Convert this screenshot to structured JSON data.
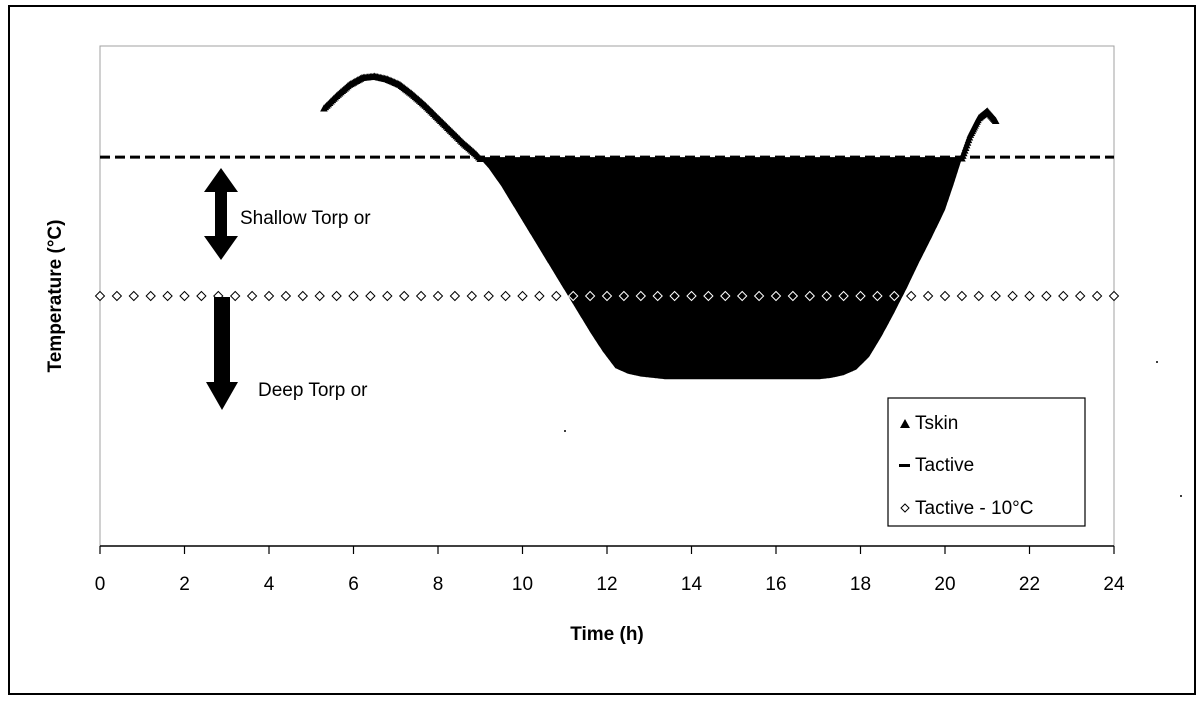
{
  "chart_data": {
    "type": "scatter",
    "title": "",
    "xlabel": "Time (h)",
    "ylabel": "Temperature (°C)",
    "xlim": [
      0,
      24
    ],
    "ylim": [
      0,
      36
    ],
    "x_ticks": [
      0,
      2,
      4,
      6,
      8,
      10,
      12,
      14,
      16,
      18,
      20,
      22,
      24
    ],
    "x_tick_labels": [
      "0",
      "2",
      "4",
      "6",
      "8",
      "10",
      "12",
      "14",
      "16",
      "18",
      "20",
      "22",
      "24"
    ],
    "y_tick_labels_shown": false,
    "grid": false,
    "legend_position": "bottom-right",
    "annotations": [
      "Shallow Torp or",
      "Deep Torp or"
    ],
    "series": [
      {
        "name": "Tskin",
        "marker": "triangle",
        "color": "#000000",
        "x": [
          5.3,
          5.6,
          5.9,
          6.2,
          6.5,
          6.8,
          7.1,
          7.4,
          7.7,
          8.0,
          8.3,
          8.6,
          8.9,
          9.2,
          9.5,
          9.8,
          10.1,
          10.4,
          10.7,
          11.0,
          11.3,
          11.6,
          11.9,
          12.2,
          12.5,
          12.8,
          13.1,
          13.4,
          13.7,
          14.0,
          14.5,
          15.0,
          15.5,
          16.0,
          16.5,
          17.0,
          17.3,
          17.6,
          17.9,
          18.2,
          18.5,
          18.8,
          19.1,
          19.4,
          19.7,
          20.0,
          20.2,
          20.4,
          20.6,
          20.8,
          21.0,
          21.2
        ],
        "y": [
          31.5,
          32.4,
          33.2,
          33.7,
          33.8,
          33.6,
          33.2,
          32.5,
          31.7,
          30.8,
          29.9,
          29.0,
          28.2,
          27.2,
          25.9,
          24.4,
          22.9,
          21.4,
          19.9,
          18.4,
          16.9,
          15.4,
          14.0,
          12.8,
          12.4,
          12.2,
          12.1,
          12.0,
          12.0,
          12.0,
          12.0,
          12.0,
          12.0,
          12.0,
          12.0,
          12.0,
          12.1,
          12.3,
          12.7,
          13.6,
          15.1,
          16.8,
          18.6,
          20.5,
          22.3,
          24.2,
          26.0,
          27.9,
          29.6,
          30.8,
          31.3,
          30.6
        ]
      },
      {
        "name": "Tactive",
        "marker": "dash",
        "color": "#000000",
        "x": [
          0,
          24
        ],
        "y": [
          28,
          28
        ]
      },
      {
        "name": "Tactive - 10°C",
        "marker": "diamond",
        "color": "#000000",
        "x_step": 0.4,
        "x_range": [
          0,
          24
        ],
        "y": 18
      }
    ]
  }
}
